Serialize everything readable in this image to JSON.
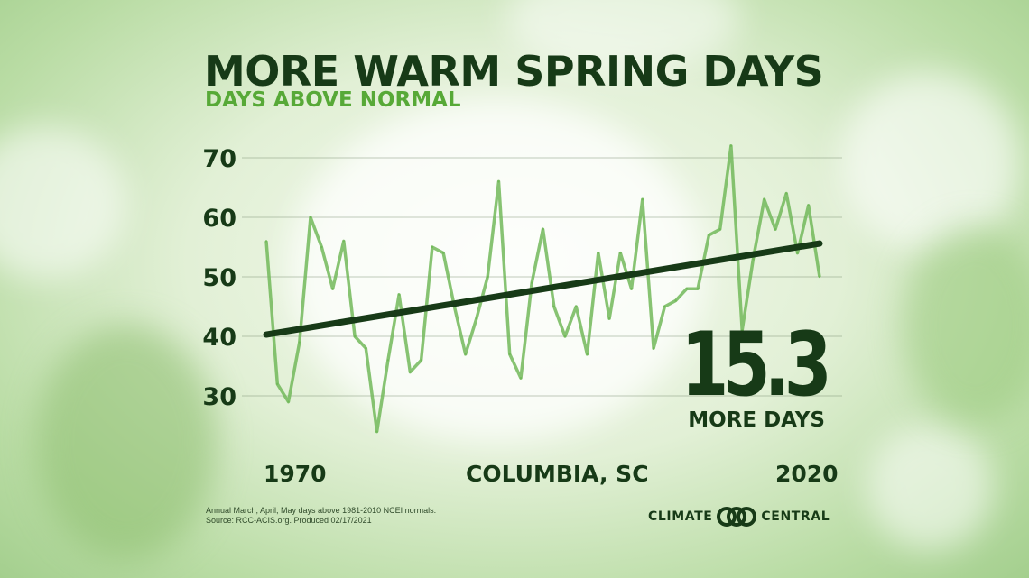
{
  "title": "MORE WARM SPRING DAYS",
  "subtitle": "DAYS ABOVE NORMAL",
  "location": "COLUMBIA, SC",
  "callout": {
    "value": "15.3",
    "label": "MORE DAYS"
  },
  "footnote": {
    "line1": "Annual March, April, May days above 1981-2010 NCEI normals.",
    "line2": "Source: RCC-ACIS.org. Produced 02/17/2021"
  },
  "logo": {
    "left": "CLIMATE",
    "right": "CENTRAL",
    "icon": "climate-central-rings-icon"
  },
  "colors": {
    "dark": "#173a17",
    "accent": "#57a937",
    "series": "#72b95a"
  },
  "chart_data": {
    "type": "line",
    "title": "MORE WARM SPRING DAYS",
    "subtitle": "DAYS ABOVE NORMAL",
    "xlabel": "",
    "ylabel": "",
    "xlim": [
      1970,
      2020
    ],
    "ylim": [
      22,
      75
    ],
    "x_tick_labels": [
      "1970",
      "2020"
    ],
    "y_ticks": [
      30,
      40,
      50,
      60,
      70
    ],
    "grid": true,
    "series": [
      {
        "x": [
          1970,
          1971,
          1972,
          1973,
          1974,
          1975,
          1976,
          1977,
          1978,
          1979,
          1980,
          1981,
          1982,
          1983,
          1984,
          1985,
          1986,
          1987,
          1988,
          1989,
          1990,
          1991,
          1992,
          1993,
          1994,
          1995,
          1996,
          1997,
          1998,
          1999,
          2000,
          2001,
          2002,
          2003,
          2004,
          2005,
          2006,
          2007,
          2008,
          2009,
          2010,
          2011,
          2012,
          2013,
          2014,
          2015,
          2016,
          2017,
          2018,
          2019,
          2020
        ],
        "values": [
          56,
          32,
          29,
          39,
          60,
          55,
          48,
          56,
          40,
          38,
          24,
          36,
          47,
          34,
          36,
          55,
          54,
          45,
          37,
          43,
          50,
          66,
          37,
          33,
          49,
          58,
          45,
          40,
          45,
          37,
          54,
          43,
          54,
          48,
          63,
          38,
          45,
          46,
          48,
          48,
          57,
          58,
          72,
          41,
          53,
          63,
          58,
          64,
          54,
          62,
          50
        ]
      },
      {
        "name": "trend",
        "x": [
          1970,
          2020
        ],
        "values": [
          40.3,
          55.6
        ]
      }
    ]
  }
}
